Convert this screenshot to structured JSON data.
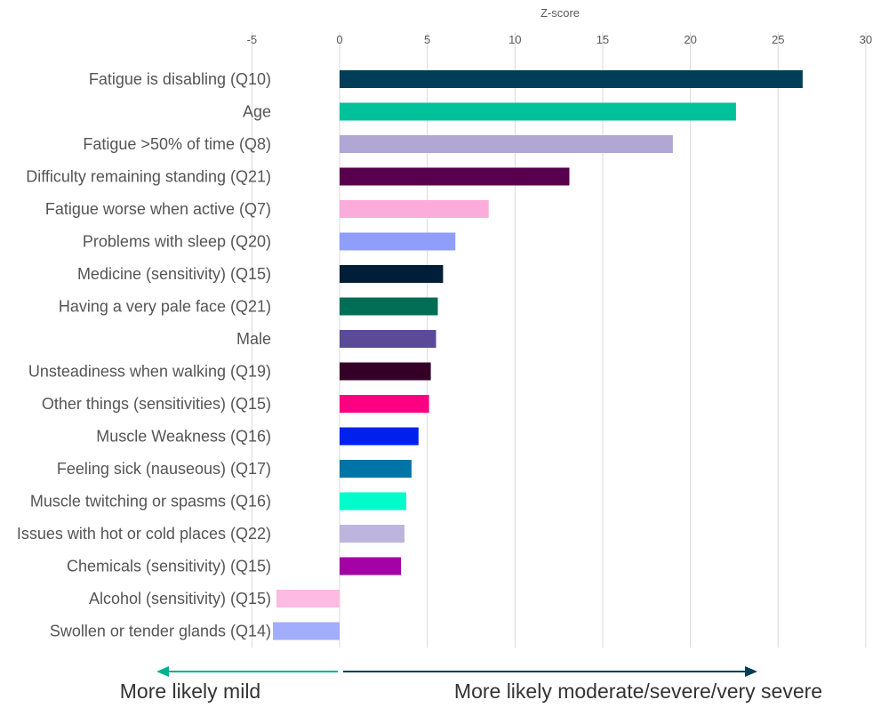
{
  "chart_data": {
    "type": "bar",
    "orientation": "horizontal",
    "xlabel": "Z-score",
    "xlim": [
      -5,
      30
    ],
    "xticks": [
      -5,
      0,
      5,
      10,
      15,
      20,
      25,
      30
    ],
    "grid": true,
    "categories": [
      "Fatigue is disabling (Q10)",
      "Age",
      "Fatigue >50% of time (Q8)",
      "Difficulty remaining standing (Q21)",
      "Fatigue worse when active (Q7)",
      "Problems with sleep (Q20)",
      "Medicine (sensitivity) (Q15)",
      "Having a very pale face (Q21)",
      "Male",
      "Unsteadiness when walking (Q19)",
      "Other things (sensitivities) (Q15)",
      "Muscle Weakness (Q16)",
      "Feeling sick (nauseous) (Q17)",
      "Muscle twitching or spasms (Q16)",
      "Issues with hot or cold places (Q22)",
      "Chemicals (sensitivity) (Q15)",
      "Alcohol (sensitivity) (Q15)",
      "Swollen or tender glands (Q14)"
    ],
    "values": [
      26.4,
      22.6,
      19.0,
      13.1,
      8.5,
      6.6,
      5.9,
      5.6,
      5.5,
      5.2,
      5.1,
      4.5,
      4.1,
      3.8,
      3.7,
      3.5,
      -3.6,
      -3.8
    ],
    "colors": [
      "#003d58",
      "#00c19a",
      "#b0a7d4",
      "#58004d",
      "#fcacdb",
      "#8f9dfb",
      "#001e37",
      "#006d55",
      "#5a4a98",
      "#350028",
      "#fd0082",
      "#0021ec",
      "#0074a6",
      "#00fccb",
      "#bdb5de",
      "#a300a5",
      "#fdbbe3",
      "#a2aefb"
    ],
    "annotations": {
      "left": {
        "text": "More likely mild",
        "color": "#00b08e"
      },
      "right": {
        "text": "More likely moderate/severe/very severe",
        "color": "#003d58"
      }
    }
  }
}
